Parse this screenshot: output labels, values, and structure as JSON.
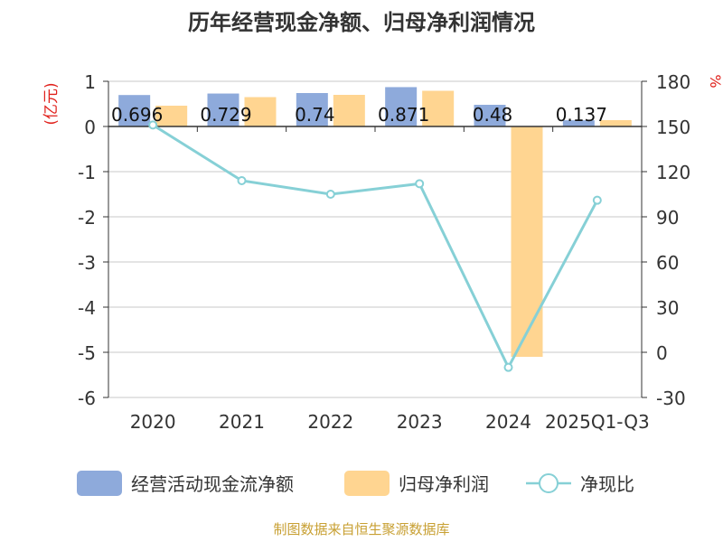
{
  "chart_data": {
    "type": "bar",
    "title": "历年经营现金净额、归母净利润情况",
    "left_axis_unit": "(亿元)",
    "right_axis_unit": "%",
    "categories": [
      "2020",
      "2021",
      "2022",
      "2023",
      "2024",
      "2025Q1-Q3"
    ],
    "y_left": {
      "min": -6,
      "max": 1,
      "ticks": [
        "1",
        "0",
        "-1",
        "-2",
        "-3",
        "-4",
        "-5",
        "-6"
      ]
    },
    "y_right": {
      "min": -30,
      "max": 180,
      "ticks": [
        "180",
        "150",
        "120",
        "90",
        "60",
        "30",
        "0",
        "-30"
      ]
    },
    "grid": true,
    "legend_position": "bottom",
    "series": [
      {
        "name": "经营活动现金流净额",
        "kind": "bar",
        "axis": "left",
        "color": "#8eaadb",
        "values": [
          0.696,
          0.729,
          0.74,
          0.871,
          0.48,
          0.137
        ],
        "labels": [
          "0.696",
          "0.729",
          "0.74",
          "0.871",
          "0.48",
          "0.137"
        ]
      },
      {
        "name": "归母净利润",
        "kind": "bar",
        "axis": "left",
        "color": "#ffd591",
        "values": [
          0.46,
          0.65,
          0.7,
          0.79,
          -5.1,
          0.14
        ]
      },
      {
        "name": "净现比",
        "kind": "line",
        "axis": "right",
        "color": "#86d0d6",
        "values": [
          151,
          114,
          105,
          112,
          -10,
          101
        ]
      }
    ]
  },
  "footer": {
    "source": "制图数据来自恒生聚源数据库"
  }
}
